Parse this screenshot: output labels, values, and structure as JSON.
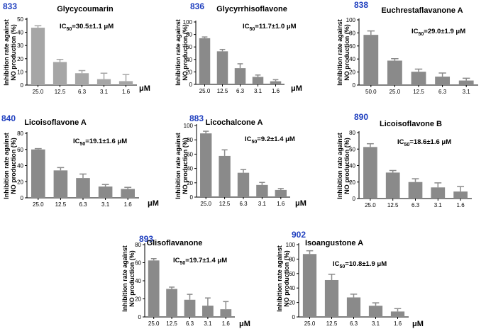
{
  "figure": {
    "ylabel_line1": "Inhibition rate against",
    "ylabel_line2": "NO production (%)",
    "x_unit": "μM",
    "colors": {
      "bar": "#8a8a8a",
      "bar_light": "#a6a6a6",
      "id": "#1f3fbf",
      "axis": "#000000"
    }
  },
  "chart_data": [
    {
      "type": "bar",
      "id": "833",
      "title": "Glycycoumarin",
      "ic50_value": "=30.5±1.1 μM",
      "categories": [
        "25.0",
        "12.5",
        "6.3",
        "3.1",
        "1.6"
      ],
      "values": [
        43.5,
        17.5,
        9.0,
        4.5,
        3.0
      ],
      "errors": [
        1.5,
        2.0,
        2.0,
        4.5,
        5.0
      ],
      "ylim": [
        0,
        50
      ],
      "yticks": [
        0,
        10,
        20,
        30,
        40,
        50
      ],
      "bar_color": "#a6a6a6"
    },
    {
      "type": "bar",
      "id": "836",
      "title": "Glycyrrhisoflavone",
      "ic50_value": "=11.7±1.0 μM",
      "categories": [
        "25.0",
        "12.5",
        "6.3",
        "3.1",
        "1.6"
      ],
      "values": [
        74.0,
        53.0,
        26.0,
        12.0,
        5.0
      ],
      "errors": [
        2.0,
        3.0,
        7.0,
        3.0,
        2.5
      ],
      "ylim": [
        0,
        100
      ],
      "yticks": [
        0,
        20,
        40,
        60,
        80,
        100
      ],
      "bar_color": "#8a8a8a"
    },
    {
      "type": "bar",
      "id": "838",
      "title": "Euchrestaflavanone A",
      "ic50_value": "=29.0±1.9 μM",
      "categories": [
        "50.0",
        "25.0",
        "12.5",
        "6.3",
        "3.1"
      ],
      "values": [
        77.0,
        37.5,
        20.5,
        13.0,
        7.0
      ],
      "errors": [
        6.0,
        3.0,
        4.0,
        5.5,
        3.5
      ],
      "ylim": [
        0,
        100
      ],
      "yticks": [
        0,
        20,
        40,
        60,
        80,
        100
      ],
      "bar_color": "#8a8a8a"
    },
    {
      "type": "bar",
      "id": "840",
      "title": "Licoisoflavone A",
      "ic50_value": "=19.1±1.6 μM",
      "categories": [
        "25.0",
        "12.5",
        "6.3",
        "3.1",
        "1.6"
      ],
      "values": [
        60.0,
        34.0,
        24.5,
        14.0,
        11.0
      ],
      "errors": [
        1.0,
        3.5,
        5.0,
        2.5,
        2.0
      ],
      "ylim": [
        0,
        80
      ],
      "yticks": [
        0,
        20,
        40,
        60,
        80
      ],
      "bar_color": "#8a8a8a"
    },
    {
      "type": "bar",
      "id": "883",
      "title": "Licochalcone A",
      "ic50_value": "=9.2±1.4 μM",
      "categories": [
        "25.0",
        "12.5",
        "6.3",
        "3.1",
        "1.6"
      ],
      "values": [
        89.0,
        57.5,
        34.0,
        17.0,
        10.0
      ],
      "errors": [
        3.0,
        8.5,
        4.5,
        3.5,
        2.0
      ],
      "ylim": [
        0,
        100
      ],
      "yticks": [
        0,
        20,
        40,
        60,
        80,
        100
      ],
      "bar_color": "#8a8a8a"
    },
    {
      "type": "bar",
      "id": "890",
      "title": "Licoisoflavone B",
      "ic50_value": "=18.6±1.6 μM",
      "categories": [
        "25.0",
        "12.5",
        "6.3",
        "3.1",
        "1.6"
      ],
      "values": [
        62.5,
        31.5,
        20.0,
        13.5,
        8.5
      ],
      "errors": [
        4.0,
        2.5,
        4.0,
        5.5,
        6.0
      ],
      "ylim": [
        0,
        80
      ],
      "yticks": [
        0,
        20,
        40,
        60,
        80
      ],
      "bar_color": "#8a8a8a"
    },
    {
      "type": "bar",
      "id": "893",
      "title": "Glisoflavanone",
      "ic50_value": "=19.7±1.4 μM",
      "categories": [
        "25.0",
        "12.5",
        "6.3",
        "3.1",
        "1.6"
      ],
      "values": [
        62.5,
        31.0,
        19.0,
        12.5,
        8.5
      ],
      "errors": [
        2.0,
        2.0,
        6.0,
        8.5,
        8.5
      ],
      "ylim": [
        0,
        80
      ],
      "yticks": [
        0,
        20,
        40,
        60,
        80
      ],
      "bar_color": "#8a8a8a"
    },
    {
      "type": "bar",
      "id": "902",
      "title": "Isoangustone A",
      "ic50_value": "=10.8±1.9 μM",
      "categories": [
        "25.0",
        "12.5",
        "6.3",
        "3.1",
        "1.6"
      ],
      "values": [
        87.0,
        51.0,
        27.0,
        15.5,
        7.5
      ],
      "errors": [
        4.5,
        8.0,
        4.5,
        4.0,
        4.0
      ],
      "ylim": [
        0,
        100
      ],
      "yticks": [
        0,
        20,
        40,
        60,
        80,
        100
      ],
      "bar_color": "#8a8a8a"
    }
  ]
}
